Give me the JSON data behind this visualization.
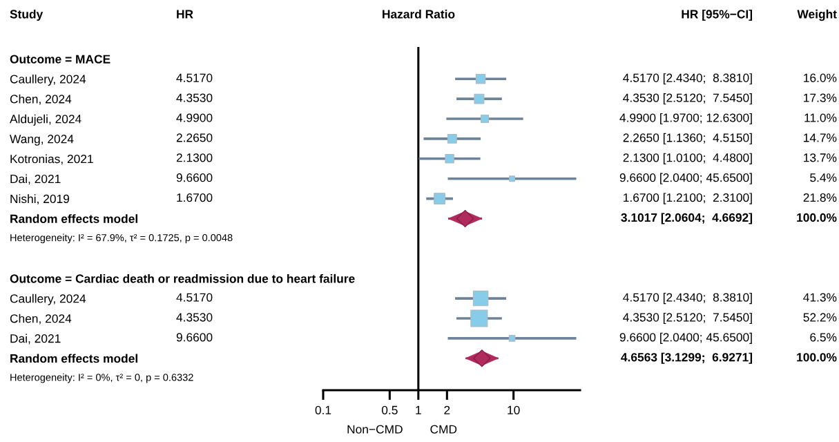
{
  "chart_data": {
    "type": "scatter",
    "orientation": "horizontal",
    "title": "Hazard Ratio",
    "ylabel": "Study",
    "categories": [
      "Outcome = MACE",
      "Caullery, 2024",
      "Chen, 2024",
      "Aldujeli, 2024",
      "Wang, 2024",
      "Kotronias, 2021",
      "Dai, 2021",
      "Nishi, 2019",
      "Random effects model",
      null,
      null,
      "Outcome = Cardiac death or readmission due to heart failure",
      "Caullery, 2024",
      "Chen, 2024",
      "Dai, 2021",
      "Random effects model",
      null
    ],
    "series": [
      {
        "marker": "square",
        "color": "#87cde9",
        "values": [
          null,
          4.517,
          4.353,
          4.99,
          2.265,
          2.13,
          9.66,
          1.67,
          null,
          null,
          null,
          null,
          4.517,
          4.353,
          9.66,
          null,
          null
        ],
        "errors": [
          null,
          [
            2.434,
            8.381
          ],
          [
            2.512,
            7.545
          ],
          [
            1.97,
            12.63
          ],
          [
            1.136,
            4.515
          ],
          [
            1.01,
            4.48
          ],
          [
            2.04,
            45.65
          ],
          [
            1.21,
            2.31
          ],
          null,
          null,
          null,
          null,
          [
            2.434,
            8.381
          ],
          [
            2.512,
            7.545
          ],
          [
            2.04,
            45.65
          ],
          null,
          null
        ],
        "sizes": [
          null,
          0.307,
          0.331,
          0.211,
          0.282,
          0.262,
          0.103,
          0.418,
          null,
          null,
          null,
          null,
          0.791,
          1,
          0.125,
          null,
          null
        ]
      },
      {
        "marker": "diamond",
        "color": "#b02a5b",
        "values": [
          null,
          null,
          null,
          null,
          null,
          null,
          null,
          null,
          3.1017,
          null,
          null,
          null,
          null,
          null,
          null,
          4.6563,
          null
        ],
        "errors": [
          null,
          null,
          null,
          null,
          null,
          null,
          null,
          null,
          [
            2.0604,
            4.6692
          ],
          null,
          null,
          null,
          null,
          null,
          null,
          [
            3.1299,
            6.9271
          ],
          null
        ]
      }
    ],
    "cell_labels": [
      [
        null,
        null,
        null
      ],
      [
        "4.5170",
        "4.5170 [2.4340;  8.3810]",
        "16.0%"
      ],
      [
        "4.3530",
        "4.3530 [2.5120;  7.5450]",
        "17.3%"
      ],
      [
        "4.9900",
        "4.9900 [1.9700; 12.6300]",
        "11.0%"
      ],
      [
        "2.2650",
        "2.2650 [1.1360;  4.5150]",
        "14.7%"
      ],
      [
        "2.1300",
        "2.1300 [1.0100;  4.4800]",
        "13.7%"
      ],
      [
        "9.6600",
        "9.6600 [2.0400; 45.6500]",
        "5.4%"
      ],
      [
        "1.6700",
        "1.6700 [1.2100;  2.3100]",
        "21.8%"
      ],
      [
        null,
        "3.1017 [2.0604;  4.6692]",
        "100.0%"
      ],
      [
        null,
        null,
        null
      ],
      [
        null,
        null,
        null
      ],
      [
        null,
        null,
        null
      ],
      [
        "4.5170",
        "4.5170 [2.4340;  8.3810]",
        "41.3%"
      ],
      [
        "4.3530",
        "4.3530 [2.5120;  7.5450]",
        "52.2%"
      ],
      [
        "9.6600",
        "9.6600 [2.0400; 45.6500]",
        "6.5%"
      ],
      [
        null,
        "4.6563 [3.1299;  6.9271]",
        "100.0%"
      ],
      [
        null,
        null,
        null
      ]
    ],
    "annotations": [
      "HR",
      "HR [95%−CI]",
      "Weight",
      "Heterogeneity: I² = 67.9%, τ² = 0.1725, p = 0.0048",
      "Heterogeneity: I² = 0%, τ² = 0, p = 0.6332",
      "Non−CMD",
      "CMD"
    ],
    "log": "x",
    "xlim": [
      0.1,
      50
    ],
    "xticks": [
      0.1,
      0.5,
      1,
      2,
      10
    ],
    "ref_lines": [
      {
        "axis": "x",
        "value": 1,
        "color": "#000000"
      }
    ],
    "grid": false,
    "legend": false
  }
}
